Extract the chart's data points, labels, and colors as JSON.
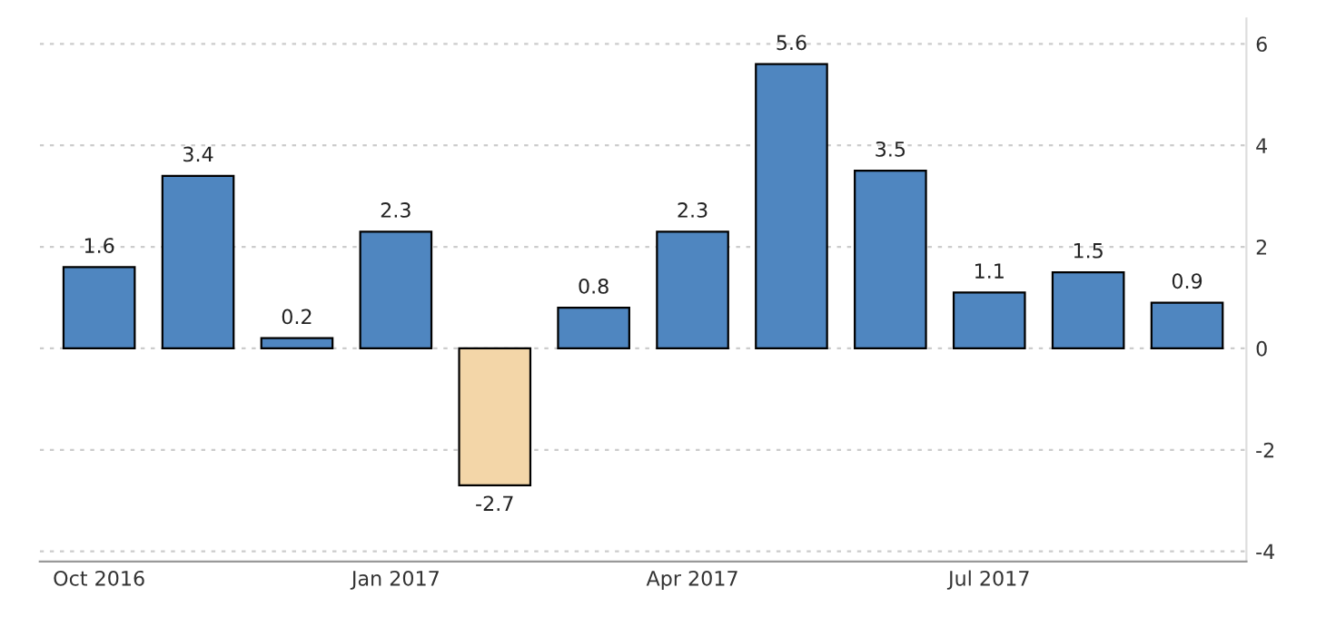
{
  "chart_data": {
    "type": "bar",
    "categories": [
      "Oct 2016",
      null,
      null,
      "Jan 2017",
      null,
      null,
      "Apr 2017",
      null,
      null,
      "Jul 2017",
      null,
      null
    ],
    "values": [
      1.6,
      3.4,
      0.2,
      2.3,
      -2.7,
      0.8,
      2.3,
      5.6,
      3.5,
      1.1,
      1.5,
      0.9
    ],
    "colors": [
      "#4f86c0",
      "#4f86c0",
      "#4f86c0",
      "#4f86c0",
      "#f3d6a8",
      "#4f86c0",
      "#4f86c0",
      "#4f86c0",
      "#4f86c0",
      "#4f86c0",
      "#4f86c0",
      "#4f86c0"
    ],
    "ylim": [
      -4.2,
      6.5
    ],
    "yticks": [
      -4,
      -2,
      0,
      2,
      4,
      6
    ],
    "grid": "y",
    "data_labels": true
  }
}
